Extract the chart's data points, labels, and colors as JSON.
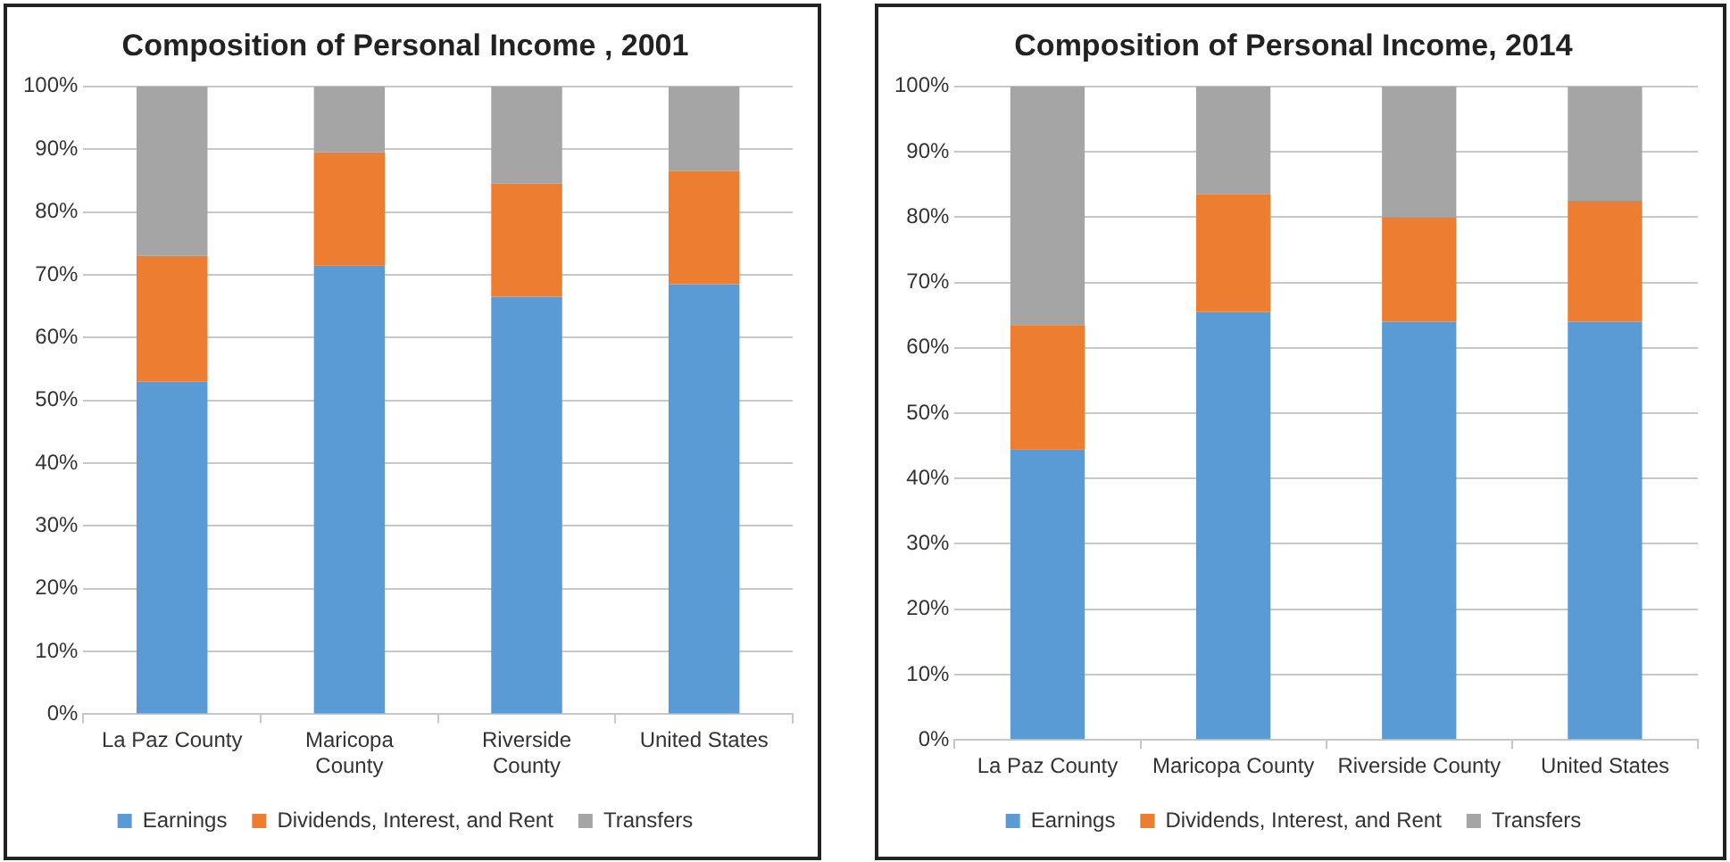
{
  "chart_data": [
    {
      "type": "bar",
      "title": "Composition of Personal Income , 2001",
      "categories": [
        "La Paz County",
        "Maricopa County",
        "Riverside County",
        "United States"
      ],
      "stacked": true,
      "series": [
        {
          "name": "Earnings",
          "color": "#5b9bd5",
          "values": [
            53,
            71.5,
            66.5,
            68.5
          ]
        },
        {
          "name": "Dividends, Interest, and Rent",
          "color": "#ed7d31",
          "values": [
            20,
            18,
            18,
            18
          ]
        },
        {
          "name": "Transfers",
          "color": "#a5a5a5",
          "values": [
            27,
            10.5,
            15.5,
            13.5
          ]
        }
      ],
      "ylim": [
        0,
        100
      ],
      "yticks": [
        {
          "value": 0,
          "label": "0%"
        },
        {
          "value": 10,
          "label": "10%"
        },
        {
          "value": 20,
          "label": "20%"
        },
        {
          "value": 30,
          "label": "30%"
        },
        {
          "value": 40,
          "label": "40%"
        },
        {
          "value": 50,
          "label": "50%"
        },
        {
          "value": 60,
          "label": "60%"
        },
        {
          "value": 70,
          "label": "70%"
        },
        {
          "value": 80,
          "label": "80%"
        },
        {
          "value": 90,
          "label": "90%"
        },
        {
          "value": 100,
          "label": "100%"
        }
      ],
      "grid": "y",
      "legend": "bottom"
    },
    {
      "type": "bar",
      "title": "Composition of Personal Income, 2014",
      "categories": [
        "La Paz County",
        "Maricopa County",
        "Riverside County",
        "United States"
      ],
      "stacked": true,
      "series": [
        {
          "name": "Earnings",
          "color": "#5b9bd5",
          "values": [
            44.5,
            65.5,
            64,
            64
          ]
        },
        {
          "name": "Dividends, Interest, and Rent",
          "color": "#ed7d31",
          "values": [
            19,
            18,
            16,
            18.5
          ]
        },
        {
          "name": "Transfers",
          "color": "#a5a5a5",
          "values": [
            36.5,
            16.5,
            20,
            17.5
          ]
        }
      ],
      "ylim": [
        0,
        100
      ],
      "yticks": [
        {
          "value": 0,
          "label": "0%"
        },
        {
          "value": 10,
          "label": "10%"
        },
        {
          "value": 20,
          "label": "20%"
        },
        {
          "value": 30,
          "label": "30%"
        },
        {
          "value": 40,
          "label": "40%"
        },
        {
          "value": 50,
          "label": "50%"
        },
        {
          "value": 60,
          "label": "60%"
        },
        {
          "value": 70,
          "label": "70%"
        },
        {
          "value": 80,
          "label": "80%"
        },
        {
          "value": 90,
          "label": "90%"
        },
        {
          "value": 100,
          "label": "100%"
        }
      ],
      "grid": "y",
      "legend": "bottom"
    }
  ]
}
